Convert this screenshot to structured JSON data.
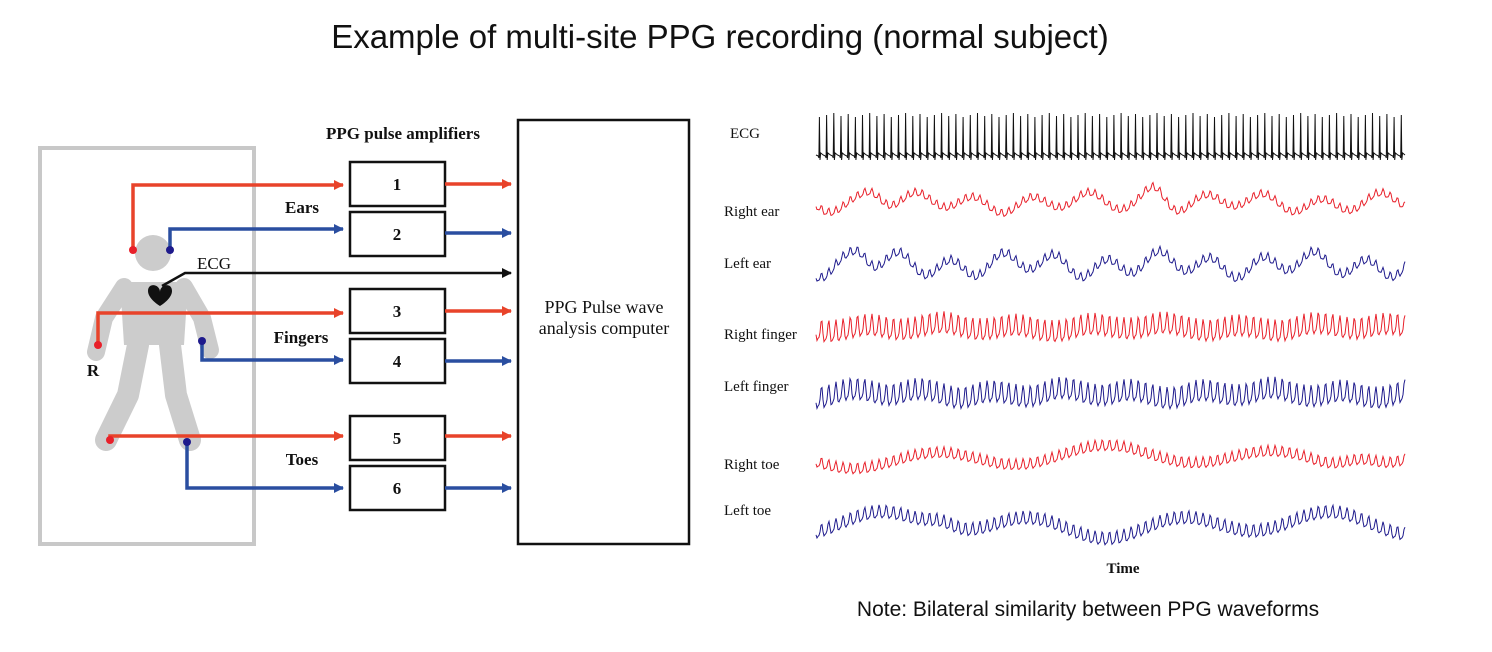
{
  "title": "Example of multi-site PPG recording (normal subject)",
  "note": "Note: Bilateral similarity between PPG waveforms",
  "amplifiers_label": "PPG pulse amplifiers",
  "amplifiers": [
    "1",
    "2",
    "3",
    "4",
    "5",
    "6"
  ],
  "groups": {
    "ears": "Ears",
    "fingers": "Fingers",
    "toes": "Toes"
  },
  "ecg_label": "ECG",
  "side_label": "R",
  "computer": {
    "line1": "PPG Pulse wave",
    "line2": "analysis computer"
  },
  "colors": {
    "right": "#e8432a",
    "left": "#2a4ea0",
    "right_trace": "#e8202a",
    "left_trace": "#1e1a8c",
    "body": "#cccccc"
  },
  "waveforms": [
    {
      "label": "ECG"
    },
    {
      "label": "Right ear"
    },
    {
      "label": "Left ear"
    },
    {
      "label": "Right finger"
    },
    {
      "label": "Left finger"
    },
    {
      "label": "Right toe"
    },
    {
      "label": "Left toe"
    }
  ],
  "time_label": "Time"
}
